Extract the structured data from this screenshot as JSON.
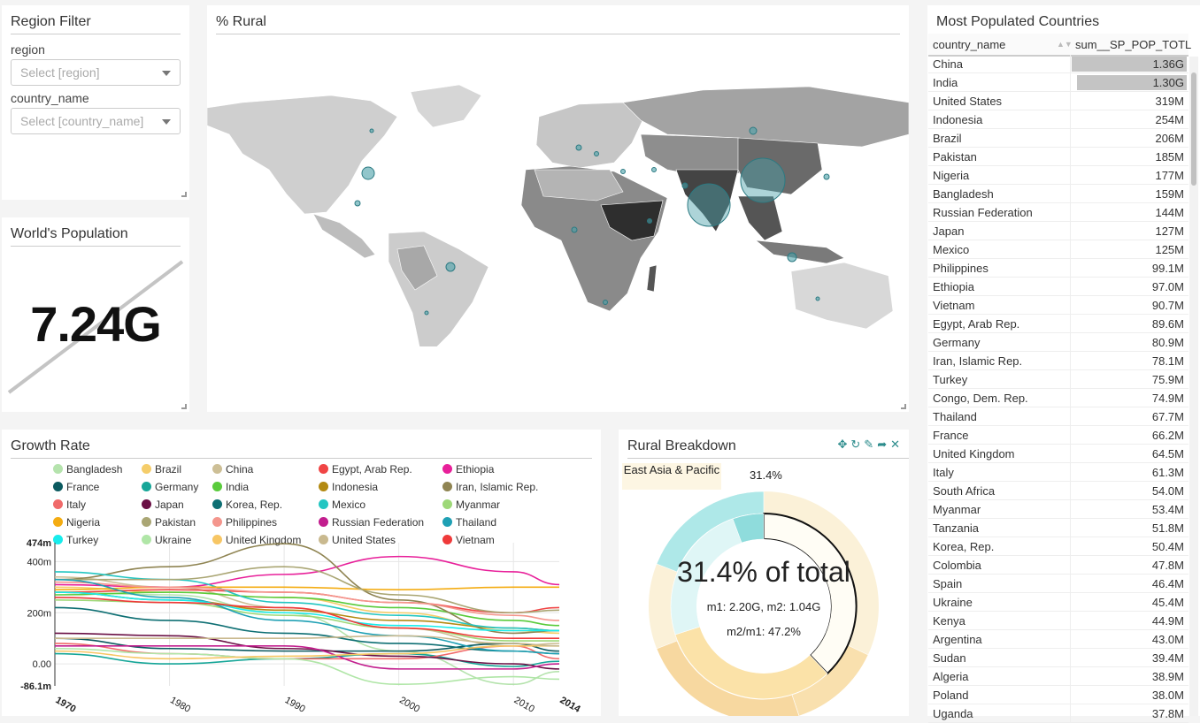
{
  "filter": {
    "title": "Region Filter",
    "region_label": "region",
    "region_placeholder": "Select [region]",
    "country_label": "country_name",
    "country_placeholder": "Select [country_name]"
  },
  "world": {
    "title": "World's Population",
    "value": "7.24G"
  },
  "map": {
    "title": "% Rural"
  },
  "table": {
    "title": "Most Populated Countries",
    "col1": "country_name",
    "col2": "sum__SP_POP_TOTL",
    "rows": [
      {
        "name": "China",
        "value": "1.36G",
        "bar": 1.0
      },
      {
        "name": "India",
        "value": "1.30G",
        "bar": 0.955
      },
      {
        "name": "United States",
        "value": "319M",
        "bar": 0.0
      },
      {
        "name": "Indonesia",
        "value": "254M",
        "bar": 0.0
      },
      {
        "name": "Brazil",
        "value": "206M",
        "bar": 0.0
      },
      {
        "name": "Pakistan",
        "value": "185M",
        "bar": 0.0
      },
      {
        "name": "Nigeria",
        "value": "177M",
        "bar": 0.0
      },
      {
        "name": "Bangladesh",
        "value": "159M",
        "bar": 0.0
      },
      {
        "name": "Russian Federation",
        "value": "144M",
        "bar": 0.0
      },
      {
        "name": "Japan",
        "value": "127M",
        "bar": 0.0
      },
      {
        "name": "Mexico",
        "value": "125M",
        "bar": 0.0
      },
      {
        "name": "Philippines",
        "value": "99.1M",
        "bar": 0.0
      },
      {
        "name": "Ethiopia",
        "value": "97.0M",
        "bar": 0.0
      },
      {
        "name": "Vietnam",
        "value": "90.7M",
        "bar": 0.0
      },
      {
        "name": "Egypt, Arab Rep.",
        "value": "89.6M",
        "bar": 0.0
      },
      {
        "name": "Germany",
        "value": "80.9M",
        "bar": 0.0
      },
      {
        "name": "Iran, Islamic Rep.",
        "value": "78.1M",
        "bar": 0.0
      },
      {
        "name": "Turkey",
        "value": "75.9M",
        "bar": 0.0
      },
      {
        "name": "Congo, Dem. Rep.",
        "value": "74.9M",
        "bar": 0.0
      },
      {
        "name": "Thailand",
        "value": "67.7M",
        "bar": 0.0
      },
      {
        "name": "France",
        "value": "66.2M",
        "bar": 0.0
      },
      {
        "name": "United Kingdom",
        "value": "64.5M",
        "bar": 0.0
      },
      {
        "name": "Italy",
        "value": "61.3M",
        "bar": 0.0
      },
      {
        "name": "South Africa",
        "value": "54.0M",
        "bar": 0.0
      },
      {
        "name": "Myanmar",
        "value": "53.4M",
        "bar": 0.0
      },
      {
        "name": "Tanzania",
        "value": "51.8M",
        "bar": 0.0
      },
      {
        "name": "Korea, Rep.",
        "value": "50.4M",
        "bar": 0.0
      },
      {
        "name": "Colombia",
        "value": "47.8M",
        "bar": 0.0
      },
      {
        "name": "Spain",
        "value": "46.4M",
        "bar": 0.0
      },
      {
        "name": "Ukraine",
        "value": "45.4M",
        "bar": 0.0
      },
      {
        "name": "Kenya",
        "value": "44.9M",
        "bar": 0.0
      },
      {
        "name": "Argentina",
        "value": "43.0M",
        "bar": 0.0
      },
      {
        "name": "Sudan",
        "value": "39.4M",
        "bar": 0.0
      },
      {
        "name": "Algeria",
        "value": "38.9M",
        "bar": 0.0
      },
      {
        "name": "Poland",
        "value": "38.0M",
        "bar": 0.0
      },
      {
        "name": "Uganda",
        "value": "37.8M",
        "bar": 0.0
      }
    ]
  },
  "growth": {
    "title": "Growth Rate",
    "legend": [
      {
        "name": "Bangladesh",
        "color": "#b5e3ad"
      },
      {
        "name": "Brazil",
        "color": "#f5cd6a"
      },
      {
        "name": "China",
        "color": "#cdbf96"
      },
      {
        "name": "Egypt, Arab Rep.",
        "color": "#f04545"
      },
      {
        "name": "Ethiopia",
        "color": "#e8209a"
      },
      {
        "name": "France",
        "color": "#0b5a5f"
      },
      {
        "name": "Germany",
        "color": "#16a698"
      },
      {
        "name": "India",
        "color": "#5acb3c"
      },
      {
        "name": "Indonesia",
        "color": "#b38a12"
      },
      {
        "name": "Iran, Islamic Rep.",
        "color": "#8f8452"
      },
      {
        "name": "Italy",
        "color": "#f06a6a"
      },
      {
        "name": "Japan",
        "color": "#6a1045"
      },
      {
        "name": "Korea, Rep.",
        "color": "#0e6f73"
      },
      {
        "name": "Mexico",
        "color": "#24c6c2"
      },
      {
        "name": "Myanmar",
        "color": "#9ed878"
      },
      {
        "name": "Nigeria",
        "color": "#f4ac12"
      },
      {
        "name": "Pakistan",
        "color": "#aaa674"
      },
      {
        "name": "Philippines",
        "color": "#f4968d"
      },
      {
        "name": "Russian Federation",
        "color": "#c21e8e"
      },
      {
        "name": "Thailand",
        "color": "#1fa0b4"
      },
      {
        "name": "Turkey",
        "color": "#18ecec"
      },
      {
        "name": "Ukraine",
        "color": "#b0e6a7"
      },
      {
        "name": "United Kingdom",
        "color": "#f7c664"
      },
      {
        "name": "United States",
        "color": "#c9b98f"
      },
      {
        "name": "Vietnam",
        "color": "#ef3a3a"
      }
    ]
  },
  "chart_data": {
    "type": "line",
    "x": [
      1970,
      1980,
      1990,
      2000,
      2010,
      2014
    ],
    "x_tick_labels": [
      "1970",
      "1980",
      "1990",
      "2000",
      "2010",
      "2014"
    ],
    "y_tick_labels": [
      "474m",
      "400m",
      "200m",
      "0.00",
      "-86.1m"
    ],
    "ylim": [
      -0.0861,
      0.474
    ],
    "series": [
      {
        "name": "Bangladesh",
        "values": [
          0.28,
          0.27,
          0.2,
          0.05,
          -0.08,
          -0.03
        ]
      },
      {
        "name": "Brazil",
        "values": [
          0.3,
          0.28,
          0.26,
          0.2,
          0.13,
          0.12
        ]
      },
      {
        "name": "China",
        "values": [
          0.34,
          0.3,
          0.22,
          0.14,
          0.07,
          0.08
        ]
      },
      {
        "name": "Egypt, Arab Rep.",
        "values": [
          0.28,
          0.29,
          0.28,
          0.24,
          0.2,
          0.22
        ]
      },
      {
        "name": "Ethiopia",
        "values": [
          0.31,
          0.3,
          0.35,
          0.42,
          0.36,
          0.31
        ]
      },
      {
        "name": "France",
        "values": [
          0.1,
          0.06,
          0.05,
          0.05,
          0.08,
          0.05
        ]
      },
      {
        "name": "Germany",
        "values": [
          0.04,
          0.0,
          0.02,
          0.04,
          -0.01,
          0.01
        ]
      },
      {
        "name": "India",
        "values": [
          0.27,
          0.28,
          0.26,
          0.22,
          0.17,
          0.15
        ]
      },
      {
        "name": "Indonesia",
        "values": [
          0.28,
          0.25,
          0.21,
          0.17,
          0.14,
          0.13
        ]
      },
      {
        "name": "Iran, Islamic Rep.",
        "values": [
          0.33,
          0.38,
          0.47,
          0.25,
          0.12,
          0.13
        ]
      },
      {
        "name": "Italy",
        "values": [
          0.08,
          0.04,
          0.02,
          0.02,
          0.07,
          0.02
        ]
      },
      {
        "name": "Japan",
        "values": [
          0.12,
          0.11,
          0.06,
          0.03,
          0.0,
          -0.02
        ]
      },
      {
        "name": "Korea, Rep.",
        "values": [
          0.22,
          0.17,
          0.12,
          0.08,
          0.05,
          0.04
        ]
      },
      {
        "name": "Mexico",
        "values": [
          0.36,
          0.33,
          0.24,
          0.19,
          0.14,
          0.13
        ]
      },
      {
        "name": "Myanmar",
        "values": [
          0.25,
          0.24,
          0.19,
          0.14,
          0.09,
          0.09
        ]
      },
      {
        "name": "Nigeria",
        "values": [
          0.29,
          0.3,
          0.3,
          0.29,
          0.3,
          0.3
        ]
      },
      {
        "name": "Pakistan",
        "values": [
          0.33,
          0.33,
          0.38,
          0.27,
          0.2,
          0.21
        ]
      },
      {
        "name": "Philippines",
        "values": [
          0.32,
          0.3,
          0.28,
          0.24,
          0.19,
          0.17
        ]
      },
      {
        "name": "Russian Federation",
        "values": [
          0.07,
          0.07,
          0.07,
          -0.02,
          -0.02,
          0.0
        ]
      },
      {
        "name": "Thailand",
        "values": [
          0.33,
          0.26,
          0.17,
          0.11,
          0.05,
          0.04
        ]
      },
      {
        "name": "Turkey",
        "values": [
          0.28,
          0.25,
          0.2,
          0.15,
          0.13,
          0.13
        ]
      },
      {
        "name": "Ukraine",
        "values": [
          0.06,
          0.04,
          0.02,
          -0.08,
          -0.05,
          -0.06
        ]
      },
      {
        "name": "United Kingdom",
        "values": [
          0.05,
          0.02,
          0.03,
          0.04,
          0.07,
          0.07
        ]
      },
      {
        "name": "United States",
        "values": [
          0.1,
          0.1,
          0.1,
          0.11,
          0.08,
          0.07
        ]
      },
      {
        "name": "Vietnam",
        "values": [
          0.26,
          0.24,
          0.22,
          0.14,
          0.1,
          0.1
        ]
      }
    ]
  },
  "rural": {
    "title": "Rural Breakdown",
    "crumb": "East Asia & Pacific",
    "crumb_pct": "31.4%",
    "center_main": "31.4% of total",
    "center_m": "m1: 2.20G, m2: 1.04G",
    "center_ratio": "m2/m1: 47.2%"
  },
  "colors": {
    "accent": "#2c8c8c",
    "map_land": "#c8c8c8",
    "bubble": "#4aa0a8"
  }
}
